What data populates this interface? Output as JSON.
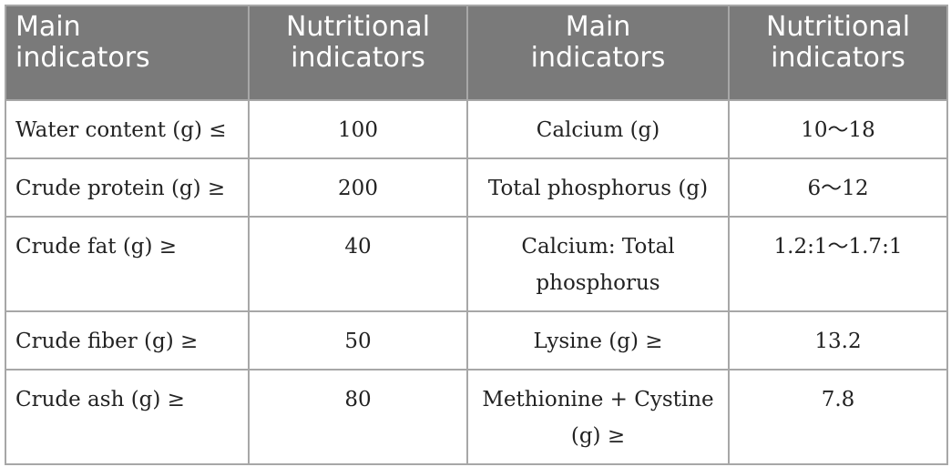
{
  "table": {
    "headers": [
      "Main\nindicators",
      "Nutritional\nindicators",
      "Main\nindicators",
      "Nutritional\nindicators"
    ],
    "header_lines": [
      [
        "Main",
        "indicators"
      ],
      [
        "Nutritional",
        "indicators"
      ],
      [
        "Main",
        "indicators"
      ],
      [
        "Nutritional",
        "indicators"
      ]
    ],
    "rows": [
      [
        "Water content (g) ≤",
        "100",
        "Calcium (g)",
        "10～18"
      ],
      [
        "Crude protein (g) ≥",
        "200",
        "Total phosphorus (g)",
        "6～12"
      ],
      [
        "Crude fat (g) ≥",
        "40",
        "Calcium: Total phosphorus",
        "1.2:1～1.7:1"
      ],
      [
        "Crude fiber (g) ≥",
        "50",
        "Lysine (g) ≥",
        "13.2"
      ],
      [
        "Crude ash (g) ≥",
        "80",
        "Methionine + Cystine (g) ≥",
        "7.8"
      ]
    ]
  },
  "colors": {
    "header_background": "#7a7a7a",
    "header_text": "#ffffff",
    "border": "#a7a7a7",
    "body_text": "#222222"
  }
}
